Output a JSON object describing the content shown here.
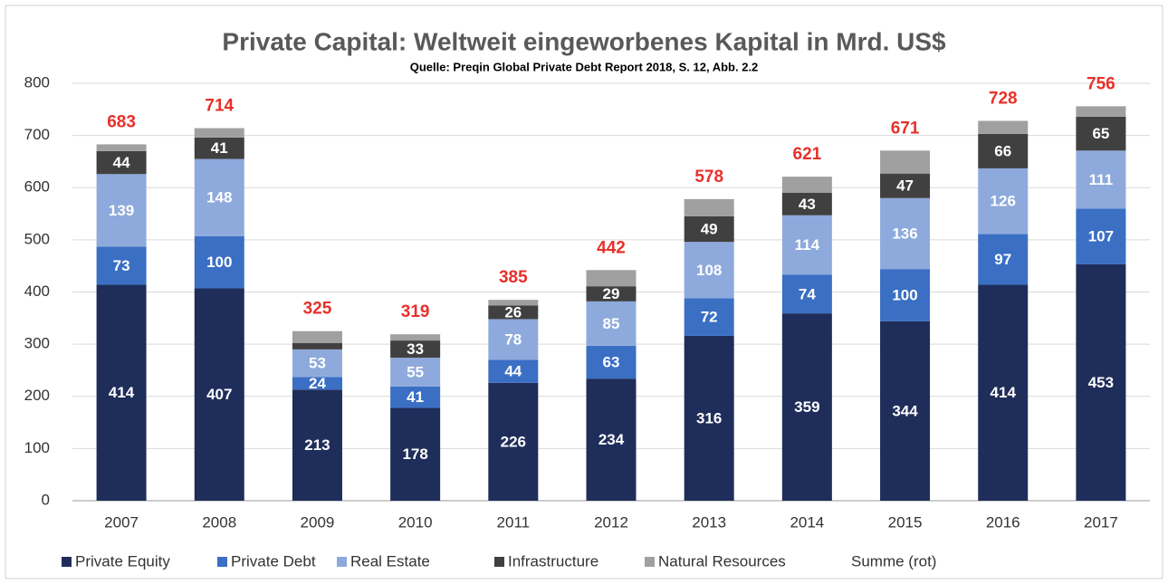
{
  "chart_data": {
    "type": "stacked_bar",
    "title": "Private Capital: Weltweit eingeworbenes Kapital in Mrd. US$",
    "subtitle": "Quelle: Preqin Global Private Debt Report 2018, S. 12, Abb. 2.2",
    "categories": [
      "2007",
      "2008",
      "2009",
      "2010",
      "2011",
      "2012",
      "2013",
      "2014",
      "2015",
      "2016",
      "2017"
    ],
    "series": [
      {
        "name": "Private Equity",
        "color": "#1f2d5a",
        "show_labels": true,
        "values": [
          414,
          407,
          213,
          178,
          226,
          234,
          316,
          359,
          344,
          414,
          453
        ]
      },
      {
        "name": "Private Debt",
        "color": "#3a6fc4",
        "show_labels": true,
        "values": [
          73,
          100,
          24,
          41,
          44,
          63,
          72,
          74,
          100,
          97,
          107
        ]
      },
      {
        "name": "Real Estate",
        "color": "#8eaadc",
        "show_labels": true,
        "values": [
          139,
          148,
          53,
          55,
          78,
          85,
          108,
          114,
          136,
          126,
          111
        ]
      },
      {
        "name": "Infrastructure",
        "color": "#404040",
        "values": [
          44,
          41,
          12,
          33,
          26,
          29,
          49,
          43,
          47,
          66,
          65
        ],
        "value_labels": [
          "44",
          "41",
          null,
          "33",
          "26",
          "29",
          "49",
          "43",
          "47",
          "66",
          "65"
        ]
      },
      {
        "name": "Natural Resources",
        "color": "#a0a0a0",
        "values": [
          13,
          18,
          23,
          12,
          11,
          31,
          33,
          31,
          44,
          25,
          20
        ]
      }
    ],
    "totals": {
      "name": "Summe (rot)",
      "color": "#e8302a",
      "values": [
        683,
        714,
        325,
        319,
        385,
        442,
        578,
        621,
        671,
        728,
        756
      ]
    },
    "ylim": [
      0,
      800
    ],
    "yticks": [
      0,
      100,
      200,
      300,
      400,
      500,
      600,
      700,
      800
    ],
    "grid": true
  }
}
